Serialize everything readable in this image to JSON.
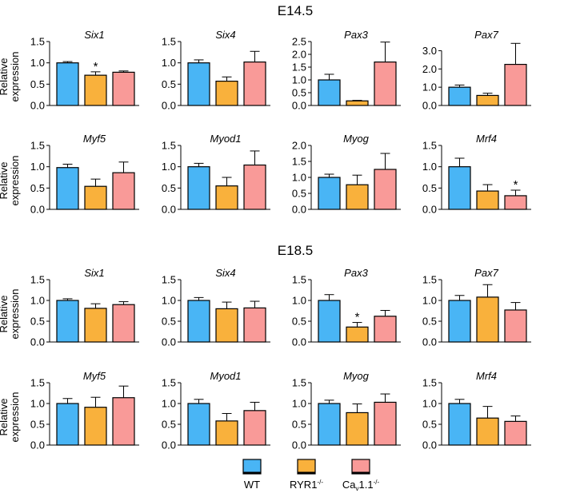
{
  "sections": [
    {
      "title": "E14.5"
    },
    {
      "title": "E18.5"
    }
  ],
  "ylabel_line1": "Relative",
  "ylabel_line2": "expression",
  "colors": {
    "WT": "#49b5f5",
    "RYR1": "#f9b13c",
    "CAV": "#f99a98"
  },
  "legend": [
    {
      "key": "WT",
      "label": "WT"
    },
    {
      "key": "RYR1",
      "label": "RYR1",
      "sup": "-/-"
    },
    {
      "key": "CAV",
      "label": "Ca",
      "sub": "v",
      "label2": "1.1",
      "sup": "-/-"
    }
  ],
  "chart_data": [
    {
      "type": "bar",
      "section": "E14.5",
      "title": "Six1",
      "ylim": [
        0,
        1.5
      ],
      "ticks": [
        "0.0",
        "0.5",
        "1.0",
        "1.5"
      ],
      "tick_values": [
        0,
        0.5,
        1.0,
        1.5
      ],
      "categories": [
        "WT",
        "RYR1-/-",
        "Cav1.1-/-"
      ],
      "values": [
        1.0,
        0.71,
        0.78
      ],
      "errors": [
        0.03,
        0.08,
        0.03
      ],
      "significant": [
        false,
        true,
        false
      ]
    },
    {
      "type": "bar",
      "section": "E14.5",
      "title": "Six4",
      "ylim": [
        0,
        1.5
      ],
      "ticks": [
        "0.0",
        "0.5",
        "1.0",
        "1.5"
      ],
      "tick_values": [
        0,
        0.5,
        1.0,
        1.5
      ],
      "categories": [
        "WT",
        "RYR1-/-",
        "Cav1.1-/-"
      ],
      "values": [
        1.0,
        0.57,
        1.02
      ],
      "errors": [
        0.07,
        0.1,
        0.25
      ],
      "significant": [
        false,
        false,
        false
      ]
    },
    {
      "type": "bar",
      "section": "E14.5",
      "title": "Pax3",
      "ylim": [
        0,
        2.5
      ],
      "ticks": [
        "0.0",
        "0.5",
        "1.0",
        "1.5",
        "2.0",
        "2.5"
      ],
      "tick_values": [
        0,
        0.5,
        1.0,
        1.5,
        2.0,
        2.5
      ],
      "categories": [
        "WT",
        "RYR1-/-",
        "Cav1.1-/-"
      ],
      "values": [
        1.0,
        0.18,
        1.7
      ],
      "errors": [
        0.22,
        0.02,
        0.78
      ],
      "significant": [
        false,
        false,
        false
      ]
    },
    {
      "type": "bar",
      "section": "E14.5",
      "title": "Pax7",
      "ylim": [
        0,
        3.5
      ],
      "ticks": [
        "0.0",
        "1.0",
        "2.0",
        "3.0"
      ],
      "tick_values": [
        0,
        1.0,
        2.0,
        3.0
      ],
      "categories": [
        "WT",
        "RYR1-/-",
        "Cav1.1-/-"
      ],
      "values": [
        1.0,
        0.55,
        2.25
      ],
      "errors": [
        0.12,
        0.12,
        1.15
      ],
      "significant": [
        false,
        false,
        false
      ]
    },
    {
      "type": "bar",
      "section": "E14.5",
      "title": "Myf5",
      "ylim": [
        0,
        1.5
      ],
      "ticks": [
        "0.0",
        "0.5",
        "1.0",
        "1.5"
      ],
      "tick_values": [
        0,
        0.5,
        1.0,
        1.5
      ],
      "categories": [
        "WT",
        "RYR1-/-",
        "Cav1.1-/-"
      ],
      "values": [
        0.98,
        0.54,
        0.86
      ],
      "errors": [
        0.08,
        0.17,
        0.25
      ],
      "significant": [
        false,
        false,
        false
      ]
    },
    {
      "type": "bar",
      "section": "E14.5",
      "title": "Myod1",
      "ylim": [
        0,
        1.5
      ],
      "ticks": [
        "0.0",
        "0.5",
        "1.0",
        "1.5"
      ],
      "tick_values": [
        0,
        0.5,
        1.0,
        1.5
      ],
      "categories": [
        "WT",
        "RYR1-/-",
        "Cav1.1-/-"
      ],
      "values": [
        1.0,
        0.55,
        1.04
      ],
      "errors": [
        0.08,
        0.2,
        0.33
      ],
      "significant": [
        false,
        false,
        false
      ]
    },
    {
      "type": "bar",
      "section": "E14.5",
      "title": "Myog",
      "ylim": [
        0,
        2.0
      ],
      "ticks": [
        "0.0",
        "0.5",
        "1.0",
        "1.5",
        "2.0"
      ],
      "tick_values": [
        0,
        0.5,
        1.0,
        1.5,
        2.0
      ],
      "categories": [
        "WT",
        "RYR1-/-",
        "Cav1.1-/-"
      ],
      "values": [
        1.0,
        0.77,
        1.25
      ],
      "errors": [
        0.1,
        0.3,
        0.5
      ],
      "significant": [
        false,
        false,
        false
      ]
    },
    {
      "type": "bar",
      "section": "E14.5",
      "title": "Mrf4",
      "ylim": [
        0,
        1.5
      ],
      "ticks": [
        "0.0",
        "0.5",
        "1.0",
        "1.5"
      ],
      "tick_values": [
        0,
        0.5,
        1.0,
        1.5
      ],
      "categories": [
        "WT",
        "RYR1-/-",
        "Cav1.1-/-"
      ],
      "values": [
        1.0,
        0.43,
        0.32
      ],
      "errors": [
        0.2,
        0.15,
        0.13
      ],
      "significant": [
        false,
        false,
        true
      ]
    },
    {
      "type": "bar",
      "section": "E18.5",
      "title": "Six1",
      "ylim": [
        0,
        1.5
      ],
      "ticks": [
        "0.0",
        "0.5",
        "1.0",
        "1.5"
      ],
      "tick_values": [
        0,
        0.5,
        1.0,
        1.5
      ],
      "categories": [
        "WT",
        "RYR1-/-",
        "Cav1.1-/-"
      ],
      "values": [
        1.0,
        0.81,
        0.9
      ],
      "errors": [
        0.04,
        0.11,
        0.07
      ],
      "significant": [
        false,
        false,
        false
      ]
    },
    {
      "type": "bar",
      "section": "E18.5",
      "title": "Six4",
      "ylim": [
        0,
        1.5
      ],
      "ticks": [
        "0.0",
        "0.5",
        "1.0",
        "1.5"
      ],
      "tick_values": [
        0,
        0.5,
        1.0,
        1.5
      ],
      "categories": [
        "WT",
        "RYR1-/-",
        "Cav1.1-/-"
      ],
      "values": [
        1.0,
        0.8,
        0.82
      ],
      "errors": [
        0.07,
        0.16,
        0.16
      ],
      "significant": [
        false,
        false,
        false
      ]
    },
    {
      "type": "bar",
      "section": "E18.5",
      "title": "Pax3",
      "ylim": [
        0,
        1.5
      ],
      "ticks": [
        "0.0",
        "0.5",
        "1.0",
        "1.5"
      ],
      "tick_values": [
        0,
        0.5,
        1.0,
        1.5
      ],
      "categories": [
        "WT",
        "RYR1-/-",
        "Cav1.1-/-"
      ],
      "values": [
        1.0,
        0.36,
        0.62
      ],
      "errors": [
        0.14,
        0.11,
        0.14
      ],
      "significant": [
        false,
        true,
        false
      ]
    },
    {
      "type": "bar",
      "section": "E18.5",
      "title": "Pax7",
      "ylim": [
        0,
        1.5
      ],
      "ticks": [
        "0.0",
        "0.5",
        "1.0",
        "1.5"
      ],
      "tick_values": [
        0,
        0.5,
        1.0,
        1.5
      ],
      "categories": [
        "WT",
        "RYR1-/-",
        "Cav1.1-/-"
      ],
      "values": [
        1.0,
        1.08,
        0.77
      ],
      "errors": [
        0.12,
        0.3,
        0.18
      ],
      "significant": [
        false,
        false,
        false
      ]
    },
    {
      "type": "bar",
      "section": "E18.5",
      "title": "Myf5",
      "ylim": [
        0,
        1.5
      ],
      "ticks": [
        "0.0",
        "0.5",
        "1.0",
        "1.5"
      ],
      "tick_values": [
        0,
        0.5,
        1.0,
        1.5
      ],
      "categories": [
        "WT",
        "RYR1-/-",
        "Cav1.1-/-"
      ],
      "values": [
        1.0,
        0.91,
        1.14
      ],
      "errors": [
        0.12,
        0.24,
        0.28
      ],
      "significant": [
        false,
        false,
        false
      ]
    },
    {
      "type": "bar",
      "section": "E18.5",
      "title": "Myod1",
      "ylim": [
        0,
        1.5
      ],
      "ticks": [
        "0.0",
        "0.5",
        "1.0",
        "1.5"
      ],
      "tick_values": [
        0,
        0.5,
        1.0,
        1.5
      ],
      "categories": [
        "WT",
        "RYR1-/-",
        "Cav1.1-/-"
      ],
      "values": [
        1.0,
        0.58,
        0.83
      ],
      "errors": [
        0.1,
        0.18,
        0.2
      ],
      "significant": [
        false,
        false,
        false
      ]
    },
    {
      "type": "bar",
      "section": "E18.5",
      "title": "Myog",
      "ylim": [
        0,
        1.5
      ],
      "ticks": [
        "0.0",
        "0.5",
        "1.0",
        "1.5"
      ],
      "tick_values": [
        0,
        0.5,
        1.0,
        1.5
      ],
      "categories": [
        "WT",
        "RYR1-/-",
        "Cav1.1-/-"
      ],
      "values": [
        1.0,
        0.78,
        1.03
      ],
      "errors": [
        0.08,
        0.21,
        0.2
      ],
      "significant": [
        false,
        false,
        false
      ]
    },
    {
      "type": "bar",
      "section": "E18.5",
      "title": "Mrf4",
      "ylim": [
        0,
        1.5
      ],
      "ticks": [
        "0.0",
        "0.5",
        "1.0",
        "1.5"
      ],
      "tick_values": [
        0,
        0.5,
        1.0,
        1.5
      ],
      "categories": [
        "WT",
        "RYR1-/-",
        "Cav1.1-/-"
      ],
      "values": [
        1.0,
        0.65,
        0.57
      ],
      "errors": [
        0.1,
        0.28,
        0.13
      ],
      "significant": [
        false,
        false,
        false
      ]
    }
  ]
}
